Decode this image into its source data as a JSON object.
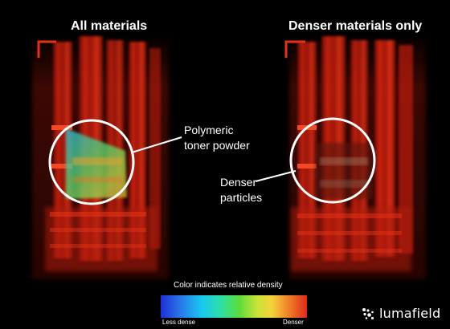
{
  "panels": {
    "left": {
      "title": "All materials"
    },
    "right": {
      "title": "Denser materials only"
    }
  },
  "callouts": {
    "polymer": {
      "line1": "Polymeric",
      "line2": "toner powder"
    },
    "denser": {
      "line1": "Denser",
      "line2": "particles"
    }
  },
  "legend": {
    "caption": "Color indicates relative density",
    "min_label": "Less dense",
    "max_label": "Denser"
  },
  "brand": {
    "name": "lumafield",
    "icon": "lumafield-logo-icon"
  },
  "colors": {
    "background": "#000000",
    "scan_red": "#d8200f",
    "accent_white": "#ffffff"
  }
}
